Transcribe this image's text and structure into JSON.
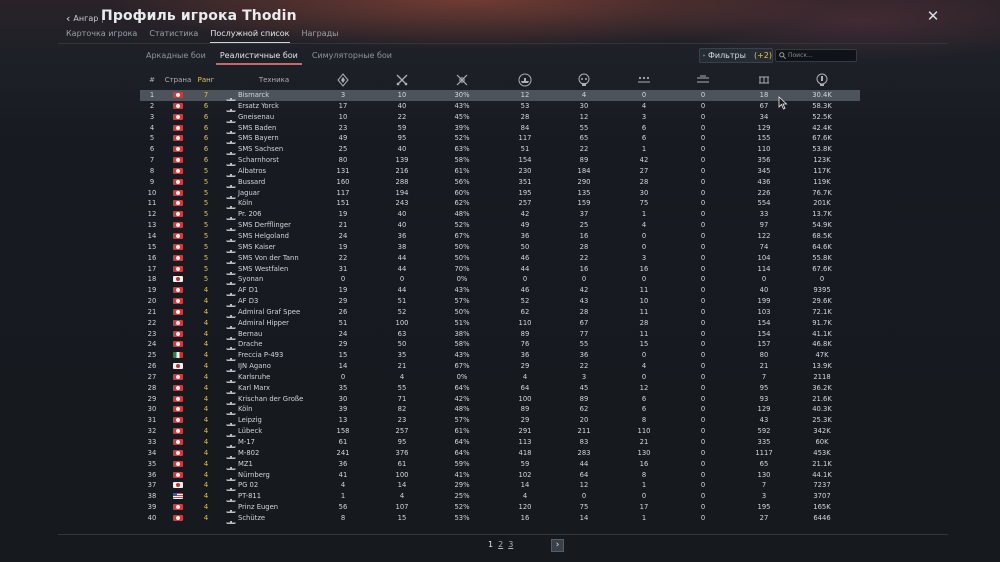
{
  "header": {
    "back_label": "Ангар",
    "title": "Профиль игрока Thodin"
  },
  "tabs": [
    {
      "label": "Карточка игрока",
      "active": false
    },
    {
      "label": "Статистика",
      "active": false
    },
    {
      "label": "Послужной список",
      "active": true
    },
    {
      "label": "Награды",
      "active": false
    }
  ],
  "modes": [
    {
      "label": "Аркадные бои",
      "active": false
    },
    {
      "label": "Реалистичные бои",
      "active": true
    },
    {
      "label": "Симуляторные бои",
      "active": false
    }
  ],
  "filters": {
    "label": "Фильтры",
    "count": "(+2)"
  },
  "search": {
    "placeholder": "Поиск..."
  },
  "columns": {
    "num": "#",
    "country": "Страна",
    "rank": "Ранг",
    "vehicle": "Техника",
    "stat_icons": [
      "victories-icon",
      "battles-icon",
      "win-rate-icon",
      "ship-kills-icon",
      "ground-kills-icon",
      "air-kills-icon",
      "naval-targets-icon",
      "deaths-icon",
      "score-icon"
    ]
  },
  "flag_colors": {
    "de": {
      "bg": "#d03a3a",
      "mark": "#f2f2f2"
    },
    "jp": {
      "bg": "#f0f0f0",
      "mark": "#c23030"
    },
    "it": {
      "green": "#1f8a3a",
      "white": "#f2f2f2",
      "red": "#c9302c"
    },
    "us": {
      "bg": "#3355aa",
      "stripe": "#d84545"
    }
  },
  "rows": [
    {
      "n": "1",
      "flag": "de",
      "rank": "7",
      "name": "Bismarck",
      "v": [
        "3",
        "10",
        "30%",
        "12",
        "4",
        "0",
        "0",
        "18",
        "30.4K"
      ],
      "selected": true
    },
    {
      "n": "2",
      "flag": "de",
      "rank": "6",
      "name": "Ersatz Yorck",
      "v": [
        "17",
        "40",
        "43%",
        "53",
        "30",
        "4",
        "0",
        "67",
        "58.3K"
      ]
    },
    {
      "n": "3",
      "flag": "de",
      "rank": "6",
      "name": "Gneisenau",
      "v": [
        "10",
        "22",
        "45%",
        "28",
        "12",
        "3",
        "0",
        "34",
        "52.5K"
      ]
    },
    {
      "n": "4",
      "flag": "de",
      "rank": "6",
      "name": "SMS Baden",
      "v": [
        "23",
        "59",
        "39%",
        "84",
        "55",
        "6",
        "0",
        "129",
        "42.4K"
      ]
    },
    {
      "n": "5",
      "flag": "de",
      "rank": "6",
      "name": "SMS Bayern",
      "v": [
        "49",
        "95",
        "52%",
        "117",
        "65",
        "6",
        "0",
        "155",
        "67.6K"
      ]
    },
    {
      "n": "6",
      "flag": "de",
      "rank": "6",
      "name": "SMS Sachsen",
      "v": [
        "25",
        "40",
        "63%",
        "51",
        "22",
        "1",
        "0",
        "110",
        "53.8K"
      ]
    },
    {
      "n": "7",
      "flag": "de",
      "rank": "6",
      "name": "Scharnhorst",
      "v": [
        "80",
        "139",
        "58%",
        "154",
        "89",
        "42",
        "0",
        "356",
        "123K"
      ]
    },
    {
      "n": "8",
      "flag": "de",
      "rank": "5",
      "name": "Albatros",
      "v": [
        "131",
        "216",
        "61%",
        "230",
        "184",
        "27",
        "0",
        "345",
        "117K"
      ]
    },
    {
      "n": "9",
      "flag": "de",
      "rank": "5",
      "name": "Bussard",
      "v": [
        "160",
        "288",
        "56%",
        "351",
        "290",
        "28",
        "0",
        "436",
        "119K"
      ]
    },
    {
      "n": "10",
      "flag": "de",
      "rank": "5",
      "name": "Jaguar",
      "v": [
        "117",
        "194",
        "60%",
        "195",
        "135",
        "30",
        "0",
        "226",
        "76.7K"
      ]
    },
    {
      "n": "11",
      "flag": "de",
      "rank": "5",
      "name": "Köln",
      "v": [
        "151",
        "243",
        "62%",
        "257",
        "159",
        "75",
        "0",
        "554",
        "201K"
      ]
    },
    {
      "n": "12",
      "flag": "de",
      "rank": "5",
      "name": "Pr. 206",
      "v": [
        "19",
        "40",
        "48%",
        "42",
        "37",
        "1",
        "0",
        "33",
        "13.7K"
      ]
    },
    {
      "n": "13",
      "flag": "de",
      "rank": "5",
      "name": "SMS Derfflinger",
      "v": [
        "21",
        "40",
        "52%",
        "49",
        "25",
        "4",
        "0",
        "97",
        "54.9K"
      ]
    },
    {
      "n": "14",
      "flag": "de",
      "rank": "5",
      "name": "SMS Helgoland",
      "v": [
        "24",
        "36",
        "67%",
        "36",
        "16",
        "0",
        "0",
        "122",
        "68.5K"
      ]
    },
    {
      "n": "15",
      "flag": "de",
      "rank": "5",
      "name": "SMS Kaiser",
      "v": [
        "19",
        "38",
        "50%",
        "50",
        "28",
        "0",
        "0",
        "74",
        "64.6K"
      ]
    },
    {
      "n": "16",
      "flag": "de",
      "rank": "5",
      "name": "SMS Von der Tann",
      "v": [
        "22",
        "44",
        "50%",
        "46",
        "22",
        "3",
        "0",
        "104",
        "55.8K"
      ]
    },
    {
      "n": "17",
      "flag": "de",
      "rank": "5",
      "name": "SMS Westfalen",
      "v": [
        "31",
        "44",
        "70%",
        "44",
        "16",
        "16",
        "0",
        "114",
        "67.6K"
      ]
    },
    {
      "n": "18",
      "flag": "jp",
      "rank": "5",
      "name": "Syonan",
      "v": [
        "0",
        "0",
        "0%",
        "0",
        "0",
        "0",
        "0",
        "0",
        "0"
      ]
    },
    {
      "n": "19",
      "flag": "de",
      "rank": "4",
      "name": "AF D1",
      "v": [
        "19",
        "44",
        "43%",
        "46",
        "42",
        "11",
        "0",
        "40",
        "9395"
      ]
    },
    {
      "n": "20",
      "flag": "de",
      "rank": "4",
      "name": "AF D3",
      "v": [
        "29",
        "51",
        "57%",
        "52",
        "43",
        "10",
        "0",
        "199",
        "29.6K"
      ]
    },
    {
      "n": "21",
      "flag": "de",
      "rank": "4",
      "name": "Admiral Graf Spee",
      "v": [
        "26",
        "52",
        "50%",
        "62",
        "28",
        "11",
        "0",
        "103",
        "72.1K"
      ]
    },
    {
      "n": "22",
      "flag": "de",
      "rank": "4",
      "name": "Admiral Hipper",
      "v": [
        "51",
        "100",
        "51%",
        "110",
        "67",
        "28",
        "0",
        "154",
        "91.7K"
      ]
    },
    {
      "n": "23",
      "flag": "de",
      "rank": "4",
      "name": "Bernau",
      "v": [
        "24",
        "63",
        "38%",
        "89",
        "77",
        "11",
        "0",
        "154",
        "41.1K"
      ]
    },
    {
      "n": "24",
      "flag": "de",
      "rank": "4",
      "name": "Drache",
      "v": [
        "29",
        "50",
        "58%",
        "76",
        "55",
        "15",
        "0",
        "157",
        "46.8K"
      ]
    },
    {
      "n": "25",
      "flag": "it",
      "rank": "4",
      "name": "Freccia P-493",
      "v": [
        "15",
        "35",
        "43%",
        "36",
        "36",
        "0",
        "0",
        "80",
        "47K"
      ]
    },
    {
      "n": "26",
      "flag": "jp",
      "rank": "4",
      "name": "IJN Agano",
      "v": [
        "14",
        "21",
        "67%",
        "29",
        "22",
        "4",
        "0",
        "21",
        "13.9K"
      ]
    },
    {
      "n": "27",
      "flag": "de",
      "rank": "4",
      "name": "Karlsruhe",
      "v": [
        "0",
        "4",
        "0%",
        "4",
        "3",
        "0",
        "0",
        "7",
        "2118"
      ]
    },
    {
      "n": "28",
      "flag": "de",
      "rank": "4",
      "name": "Karl Marx",
      "v": [
        "35",
        "55",
        "64%",
        "64",
        "45",
        "12",
        "0",
        "95",
        "36.2K"
      ]
    },
    {
      "n": "29",
      "flag": "de",
      "rank": "4",
      "name": "Krischan der Große",
      "v": [
        "30",
        "71",
        "42%",
        "100",
        "89",
        "6",
        "0",
        "93",
        "21.6K"
      ]
    },
    {
      "n": "30",
      "flag": "de",
      "rank": "4",
      "name": "Köln",
      "v": [
        "39",
        "82",
        "48%",
        "89",
        "62",
        "6",
        "0",
        "129",
        "40.3K"
      ]
    },
    {
      "n": "31",
      "flag": "de",
      "rank": "4",
      "name": "Leipzig",
      "v": [
        "13",
        "23",
        "57%",
        "29",
        "20",
        "8",
        "0",
        "43",
        "25.3K"
      ]
    },
    {
      "n": "32",
      "flag": "de",
      "rank": "4",
      "name": "Lübeck",
      "v": [
        "158",
        "257",
        "61%",
        "291",
        "211",
        "110",
        "0",
        "592",
        "342K"
      ]
    },
    {
      "n": "33",
      "flag": "de",
      "rank": "4",
      "name": "M-17",
      "v": [
        "61",
        "95",
        "64%",
        "113",
        "83",
        "21",
        "0",
        "335",
        "60K"
      ]
    },
    {
      "n": "34",
      "flag": "de",
      "rank": "4",
      "name": "M-802",
      "v": [
        "241",
        "376",
        "64%",
        "418",
        "283",
        "130",
        "0",
        "1117",
        "453K"
      ]
    },
    {
      "n": "35",
      "flag": "de",
      "rank": "4",
      "name": "MZ1",
      "v": [
        "36",
        "61",
        "59%",
        "59",
        "44",
        "16",
        "0",
        "65",
        "21.1K"
      ]
    },
    {
      "n": "36",
      "flag": "de",
      "rank": "4",
      "name": "Nürnberg",
      "v": [
        "41",
        "100",
        "41%",
        "102",
        "64",
        "8",
        "0",
        "130",
        "44.1K"
      ]
    },
    {
      "n": "37",
      "flag": "jp",
      "rank": "4",
      "name": "PG 02",
      "v": [
        "4",
        "14",
        "29%",
        "14",
        "12",
        "1",
        "0",
        "7",
        "7237"
      ]
    },
    {
      "n": "38",
      "flag": "us",
      "rank": "4",
      "name": "PT-811",
      "v": [
        "1",
        "4",
        "25%",
        "4",
        "0",
        "0",
        "0",
        "3",
        "3707"
      ]
    },
    {
      "n": "39",
      "flag": "de",
      "rank": "4",
      "name": "Prinz Eugen",
      "v": [
        "56",
        "107",
        "52%",
        "120",
        "75",
        "17",
        "0",
        "195",
        "165K"
      ]
    },
    {
      "n": "40",
      "flag": "de",
      "rank": "4",
      "name": "Schütze",
      "v": [
        "8",
        "15",
        "53%",
        "16",
        "14",
        "1",
        "0",
        "27",
        "6446"
      ]
    }
  ],
  "pagination": {
    "pages": [
      "1",
      "2",
      "3"
    ],
    "current": "1",
    "next_icon": "chevron-right-icon"
  },
  "accent": {
    "rank": "#e0c15a",
    "active_tab_underline": "#c46a6a",
    "selected_row": "#4c535b"
  }
}
